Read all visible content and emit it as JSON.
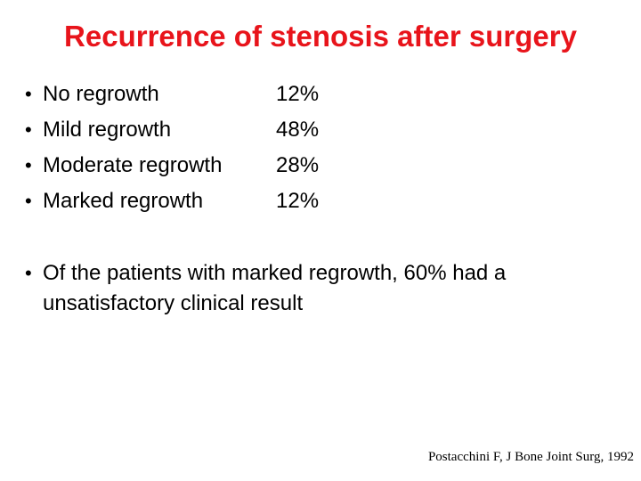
{
  "slide": {
    "title": "Recurrence of stenosis after surgery",
    "bullet_char": "•",
    "items": [
      {
        "label": "No regrowth",
        "value": "12%"
      },
      {
        "label": "Mild regrowth",
        "value": "48%"
      },
      {
        "label": "Moderate regrowth",
        "value": "28%"
      },
      {
        "label": "Marked regrowth",
        "value": "12%"
      }
    ],
    "note": "Of the patients with marked regrowth, 60% had a unsatisfactory clinical result",
    "citation": "Postacchini F, J Bone Joint Surg, 1992"
  },
  "colors": {
    "title": "#e8141b",
    "text": "#000000",
    "background": "#ffffff"
  }
}
